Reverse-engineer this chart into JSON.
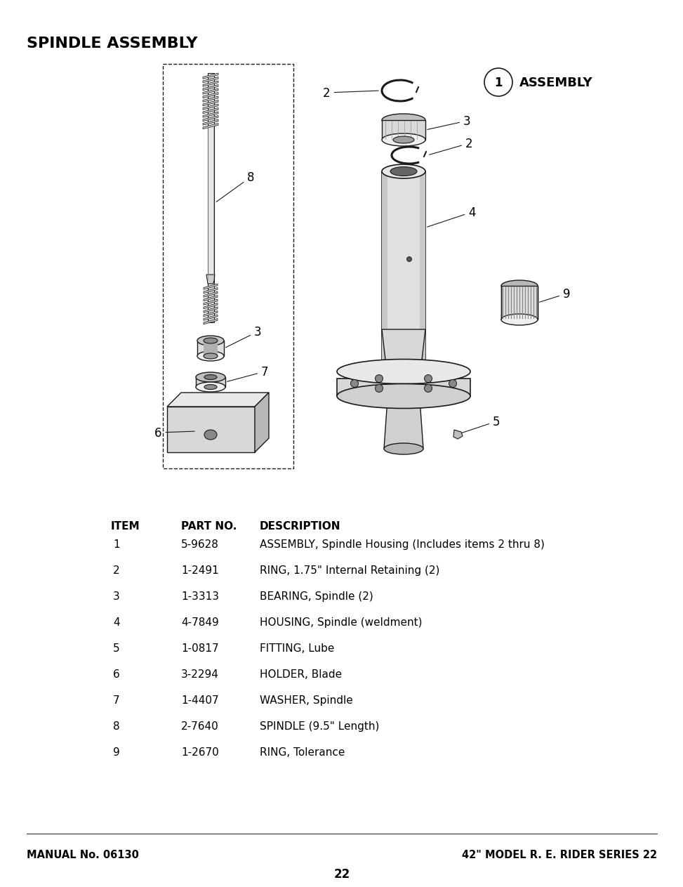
{
  "title": "SPINDLE ASSEMBLY",
  "page_number": "22",
  "manual_no": "MANUAL No. 06130",
  "model_info": "42\" MODEL R. E. RIDER SERIES 22",
  "assembly_label": "ASSEMBLY",
  "assembly_number": "1",
  "table_headers": [
    "ITEM",
    "PART NO.",
    "DESCRIPTION"
  ],
  "parts": [
    {
      "item": "1",
      "part_no": "5-9628",
      "description": "ASSEMBLY, Spindle Housing (Includes items 2 thru 8)"
    },
    {
      "item": "2",
      "part_no": "1-2491",
      "description": "RING, 1.75\" Internal Retaining (2)"
    },
    {
      "item": "3",
      "part_no": "1-3313",
      "description": "BEARING, Spindle (2)"
    },
    {
      "item": "4",
      "part_no": "4-7849",
      "description": "HOUSING, Spindle (weldment)"
    },
    {
      "item": "5",
      "part_no": "1-0817",
      "description": "FITTING, Lube"
    },
    {
      "item": "6",
      "part_no": "3-2294",
      "description": "HOLDER, Blade"
    },
    {
      "item": "7",
      "part_no": "1-4407",
      "description": "WASHER, Spindle"
    },
    {
      "item": "8",
      "part_no": "2-7640",
      "description": "SPINDLE (9.5\" Length)"
    },
    {
      "item": "9",
      "part_no": "1-2670",
      "description": "RING, Tolerance"
    }
  ],
  "bg_color": "#ffffff",
  "text_color": "#000000",
  "diagram_color": "#1a1a1a"
}
